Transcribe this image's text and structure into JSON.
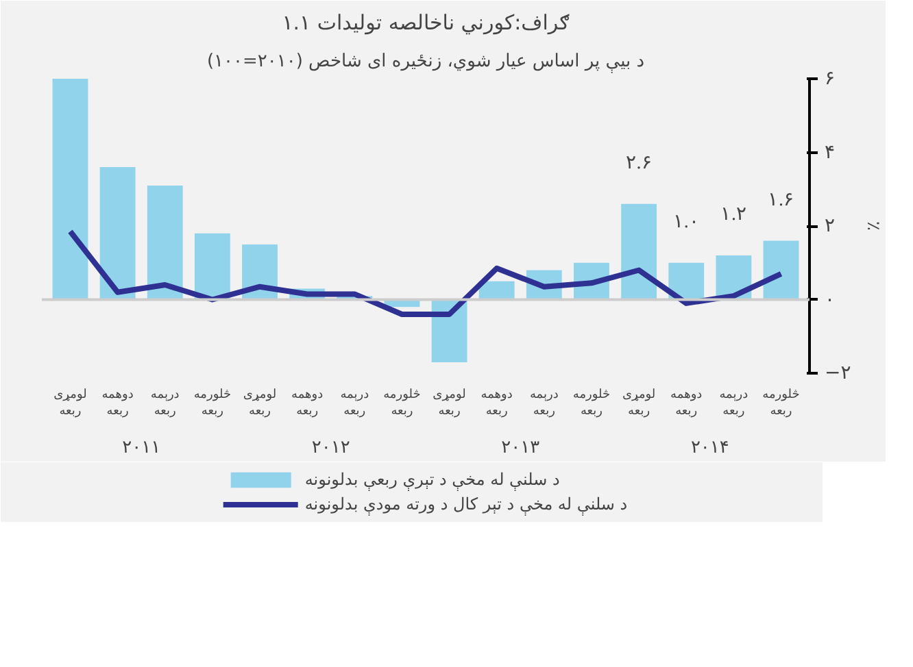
{
  "chart_data": {
    "type": "bar",
    "title": "۱.۱ ګراف:کورني ناخالصه تولیدات",
    "subtitle": "د بیې پر اساس عیار شوي، زنځیره ای شاخص (۲۰۱۰=۱۰۰)",
    "ylabel": "٪",
    "categories": [
      "لومړی\nربعه",
      "دوهمه\nربعه",
      "درېمه\nربعه",
      "څلورمه\nربعه",
      "لومړی\nربعه",
      "دوهمه\nربعه",
      "درېمه\nربعه",
      "څلورمه\nربعه",
      "لومړی\nربعه",
      "دوهمه\nربعه",
      "درېمه\nربعه",
      "څلورمه\nربعه",
      "لومړی\nربعه",
      "دوهمه\nربعه",
      "درېمه\nربعه",
      "څلورمه\nربعه"
    ],
    "series": [
      {
        "name": "د سلنې له مخې د تېرې ربعې بدلونونه",
        "color": "#92d3ec",
        "values": [
          6.0,
          3.6,
          3.1,
          1.8,
          1.5,
          0.3,
          0.1,
          -0.2,
          -1.7,
          0.5,
          0.8,
          1.0,
          2.6,
          1.0,
          1.2,
          1.6
        ],
        "value_labels": [
          null,
          null,
          null,
          null,
          null,
          null,
          null,
          null,
          null,
          null,
          null,
          null,
          "۲.۶",
          "۱.۰",
          "۱.۲",
          "۱.۶"
        ]
      },
      {
        "name": "د سلنې له مخې د تېر کال د ورته مودې بدلونونه",
        "type": "line",
        "color": "#2e3192",
        "values": [
          1.85,
          0.2,
          0.4,
          0.0,
          0.35,
          0.15,
          0.15,
          -0.4,
          -0.4,
          0.85,
          0.35,
          0.45,
          0.8,
          -0.1,
          0.1,
          0.7
        ]
      }
    ],
    "ylim": [
      -2,
      6
    ],
    "yticks": [
      {
        "value": -2,
        "label": "−۲"
      },
      {
        "value": 0,
        "label": "۰"
      },
      {
        "value": 2,
        "label": "۲"
      },
      {
        "value": 4,
        "label": "۴"
      },
      {
        "value": 6,
        "label": "۶"
      }
    ],
    "ref_lines": [
      {
        "axis": "y",
        "value": 0,
        "color": "#cccccc"
      }
    ],
    "annotations": [
      "۲۰۱۱",
      "۲۰۱۲",
      "۲۰۱۳",
      "۲۰۱۴"
    ],
    "grid": false,
    "legend": "bottom"
  }
}
